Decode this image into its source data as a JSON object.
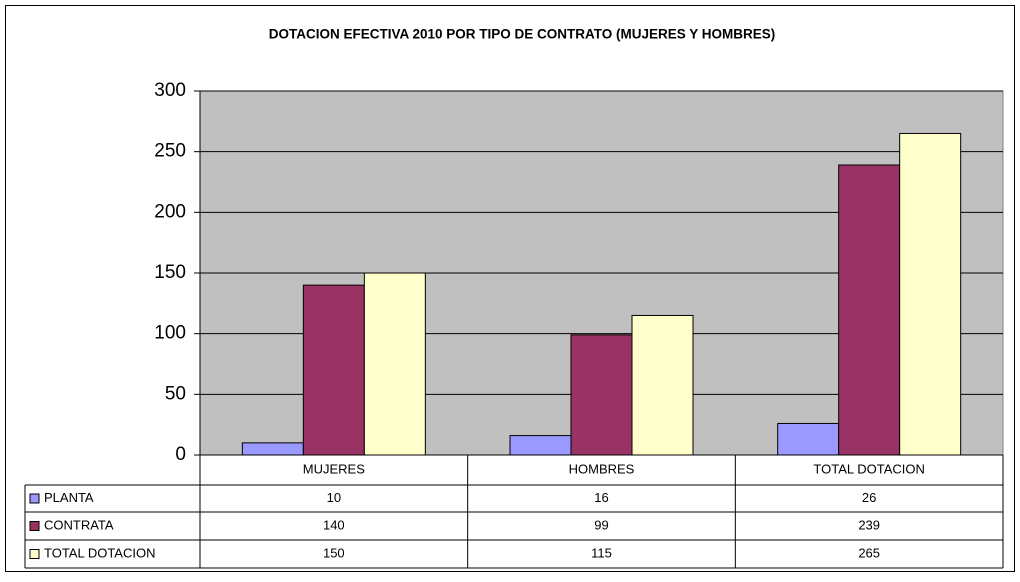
{
  "chart_data": {
    "type": "bar",
    "title": "DOTACION EFECTIVA 2010 POR TIPO DE CONTRATO (MUJERES Y HOMBRES)",
    "categories": [
      "MUJERES",
      "HOMBRES",
      "TOTAL DOTACION"
    ],
    "series": [
      {
        "name": "PLANTA",
        "color": "#9999ff",
        "values": [
          10,
          16,
          26
        ]
      },
      {
        "name": "CONTRATA",
        "color": "#993366",
        "values": [
          140,
          99,
          239
        ]
      },
      {
        "name": "TOTAL DOTACION",
        "color": "#ffffcc",
        "values": [
          150,
          115,
          265
        ]
      }
    ],
    "ylim": [
      0,
      300
    ],
    "yticks": [
      0,
      50,
      100,
      150,
      200,
      250,
      300
    ],
    "grid": true,
    "plot_background": "#c0c0c0"
  }
}
